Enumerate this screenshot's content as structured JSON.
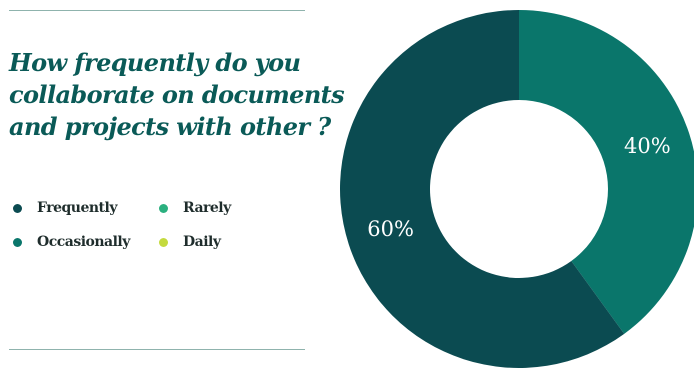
{
  "colors": {
    "Frequently": "#0b4b51",
    "Occasionally": "#0a766b",
    "Rarely": "#2bb07f",
    "Daily": "#c4da3e"
  },
  "chart_data": {
    "type": "pie",
    "title": "How frequently do you collaborate on documents and projects with other ?",
    "legend_position": "left",
    "donut": true,
    "slices": [
      {
        "label": "Occasionally",
        "value": 40,
        "display": "40%"
      },
      {
        "label": "Frequently",
        "value": 60,
        "display": "60%"
      }
    ],
    "legend": [
      "Frequently",
      "Rarely",
      "Occasionally",
      "Daily"
    ]
  }
}
